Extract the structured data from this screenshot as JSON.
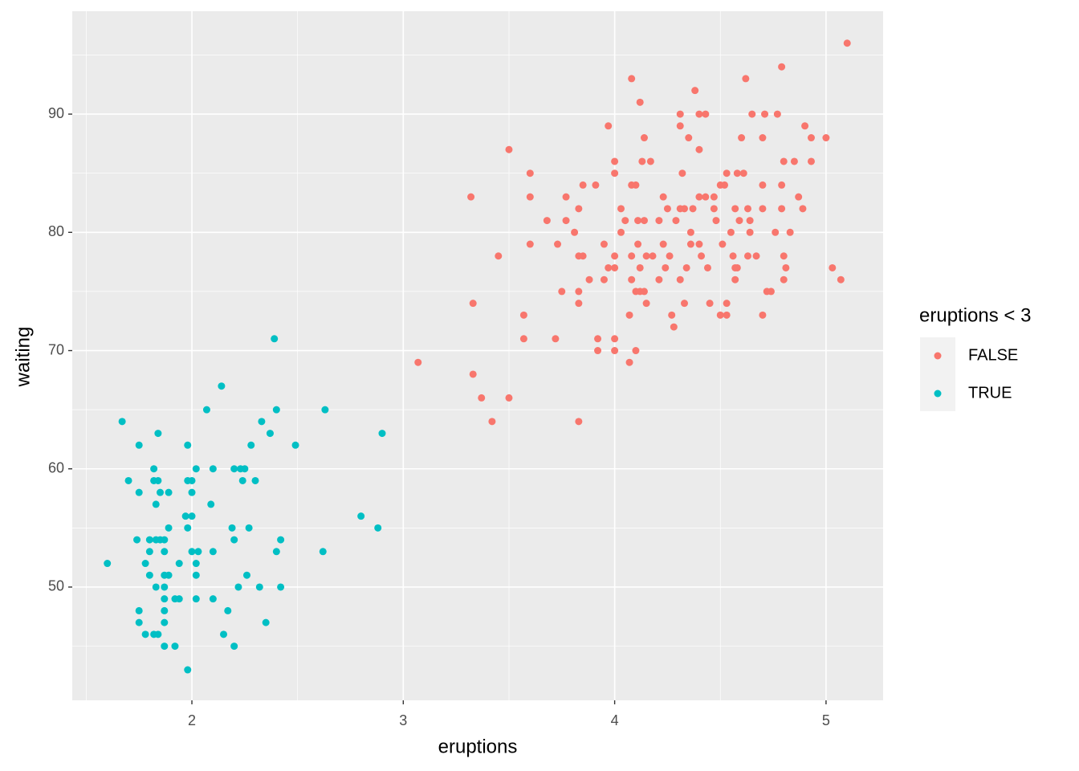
{
  "chart_data": {
    "type": "scatter",
    "x_label": "eruptions",
    "y_label": "waiting",
    "legend_title": "eruptions < 3",
    "legend": "right",
    "xlim": [
      1.434,
      5.27
    ],
    "ylim": [
      40.42,
      98.7
    ],
    "xticks": [
      2,
      3,
      4,
      5
    ],
    "yticks": [
      50,
      60,
      70,
      80,
      90
    ],
    "x_minor_ticks": [
      1.5,
      2.5,
      3.5,
      4.5
    ],
    "y_minor_ticks": [
      45,
      55,
      65,
      75,
      85,
      95
    ],
    "grid": true,
    "series": [
      {
        "name": "FALSE",
        "color": "#F8766D",
        "x": [
          3.07,
          3.32,
          3.33,
          3.33,
          3.37,
          3.42,
          3.45,
          3.5,
          3.5,
          3.57,
          3.57,
          3.6,
          3.6,
          3.6,
          3.68,
          3.72,
          3.73,
          3.75,
          3.77,
          3.77,
          3.81,
          3.83,
          3.83,
          3.83,
          3.83,
          3.83,
          3.85,
          3.85,
          3.88,
          3.91,
          3.92,
          3.92,
          3.95,
          3.95,
          3.97,
          3.97,
          4.0,
          4.0,
          4.0,
          4.0,
          4.0,
          4.0,
          4.03,
          4.03,
          4.05,
          4.07,
          4.07,
          4.08,
          4.08,
          4.08,
          4.08,
          4.1,
          4.1,
          4.1,
          4.11,
          4.11,
          4.12,
          4.12,
          4.12,
          4.13,
          4.14,
          4.14,
          4.14,
          4.15,
          4.15,
          4.17,
          4.18,
          4.21,
          4.21,
          4.23,
          4.23,
          4.24,
          4.25,
          4.26,
          4.27,
          4.28,
          4.29,
          4.31,
          4.31,
          4.31,
          4.31,
          4.32,
          4.33,
          4.33,
          4.34,
          4.35,
          4.36,
          4.36,
          4.37,
          4.38,
          4.4,
          4.4,
          4.4,
          4.4,
          4.41,
          4.43,
          4.43,
          4.44,
          4.45,
          4.47,
          4.47,
          4.48,
          4.5,
          4.5,
          4.51,
          4.52,
          4.53,
          4.53,
          4.53,
          4.55,
          4.56,
          4.57,
          4.57,
          4.57,
          4.58,
          4.58,
          4.59,
          4.6,
          4.61,
          4.62,
          4.63,
          4.63,
          4.64,
          4.64,
          4.65,
          4.67,
          4.7,
          4.7,
          4.7,
          4.7,
          4.71,
          4.72,
          4.74,
          4.76,
          4.77,
          4.79,
          4.79,
          4.79,
          4.8,
          4.8,
          4.8,
          4.81,
          4.83,
          4.85,
          4.87,
          4.89,
          4.9,
          4.93,
          4.93,
          5.0,
          5.03,
          5.07,
          5.1
        ],
        "values": [
          69,
          83,
          68,
          74,
          66,
          64,
          78,
          66,
          87,
          73,
          71,
          85,
          83,
          79,
          81,
          71,
          79,
          75,
          83,
          81,
          80,
          75,
          74,
          64,
          82,
          78,
          78,
          84,
          76,
          84,
          71,
          70,
          79,
          76,
          89,
          77,
          70,
          71,
          77,
          78,
          85,
          86,
          80,
          82,
          81,
          69,
          73,
          76,
          78,
          84,
          93,
          70,
          84,
          75,
          81,
          79,
          91,
          77,
          75,
          86,
          88,
          75,
          81,
          78,
          74,
          86,
          78,
          76,
          81,
          83,
          79,
          77,
          82,
          78,
          73,
          72,
          81,
          76,
          82,
          89,
          90,
          85,
          74,
          82,
          77,
          88,
          80,
          79,
          82,
          92,
          87,
          83,
          90,
          79,
          78,
          83,
          90,
          77,
          74,
          82,
          83,
          81,
          73,
          84,
          79,
          84,
          85,
          74,
          73,
          80,
          78,
          77,
          82,
          76,
          85,
          77,
          81,
          88,
          85,
          93,
          78,
          82,
          80,
          81,
          90,
          78,
          73,
          84,
          82,
          88,
          90,
          75,
          75,
          80,
          90,
          94,
          84,
          82,
          86,
          76,
          78,
          77,
          80,
          86,
          83,
          82,
          89,
          88,
          86,
          88,
          77,
          76,
          96
        ]
      },
      {
        "name": "TRUE",
        "color": "#00BFC4",
        "x": [
          1.6,
          1.67,
          1.7,
          1.75,
          1.75,
          1.74,
          1.75,
          1.75,
          1.78,
          1.78,
          1.8,
          1.8,
          1.8,
          1.82,
          1.82,
          1.84,
          1.83,
          1.84,
          1.82,
          1.84,
          1.83,
          1.83,
          1.85,
          1.85,
          1.87,
          1.87,
          1.87,
          1.87,
          1.87,
          1.87,
          1.87,
          1.87,
          1.89,
          1.89,
          1.89,
          1.92,
          1.92,
          1.94,
          1.94,
          1.97,
          1.98,
          1.98,
          1.98,
          1.98,
          2.0,
          2.0,
          2.0,
          2.0,
          2.02,
          2.02,
          2.02,
          2.02,
          2.03,
          2.07,
          2.09,
          2.1,
          2.1,
          2.1,
          2.14,
          2.15,
          2.17,
          2.19,
          2.2,
          2.2,
          2.2,
          2.22,
          2.23,
          2.24,
          2.25,
          2.26,
          2.27,
          2.28,
          2.3,
          2.32,
          2.33,
          2.35,
          2.37,
          2.39,
          2.4,
          2.4,
          2.42,
          2.42,
          2.49,
          2.62,
          2.63,
          2.8,
          2.88,
          2.9
        ],
        "values": [
          52,
          64,
          59,
          62,
          58,
          54,
          48,
          47,
          46,
          52,
          51,
          53,
          54,
          60,
          59,
          59,
          57,
          63,
          46,
          46,
          50,
          54,
          54,
          58,
          47,
          45,
          48,
          49,
          50,
          51,
          53,
          54,
          51,
          55,
          58,
          45,
          49,
          49,
          52,
          56,
          55,
          62,
          59,
          43,
          59,
          56,
          58,
          53,
          52,
          49,
          51,
          60,
          53,
          65,
          57,
          53,
          60,
          49,
          67,
          46,
          48,
          55,
          60,
          45,
          54,
          50,
          60,
          59,
          60,
          51,
          55,
          62,
          59,
          50,
          64,
          47,
          63,
          71,
          65,
          53,
          54,
          50,
          62,
          53,
          65,
          56,
          55,
          63
        ]
      }
    ]
  }
}
